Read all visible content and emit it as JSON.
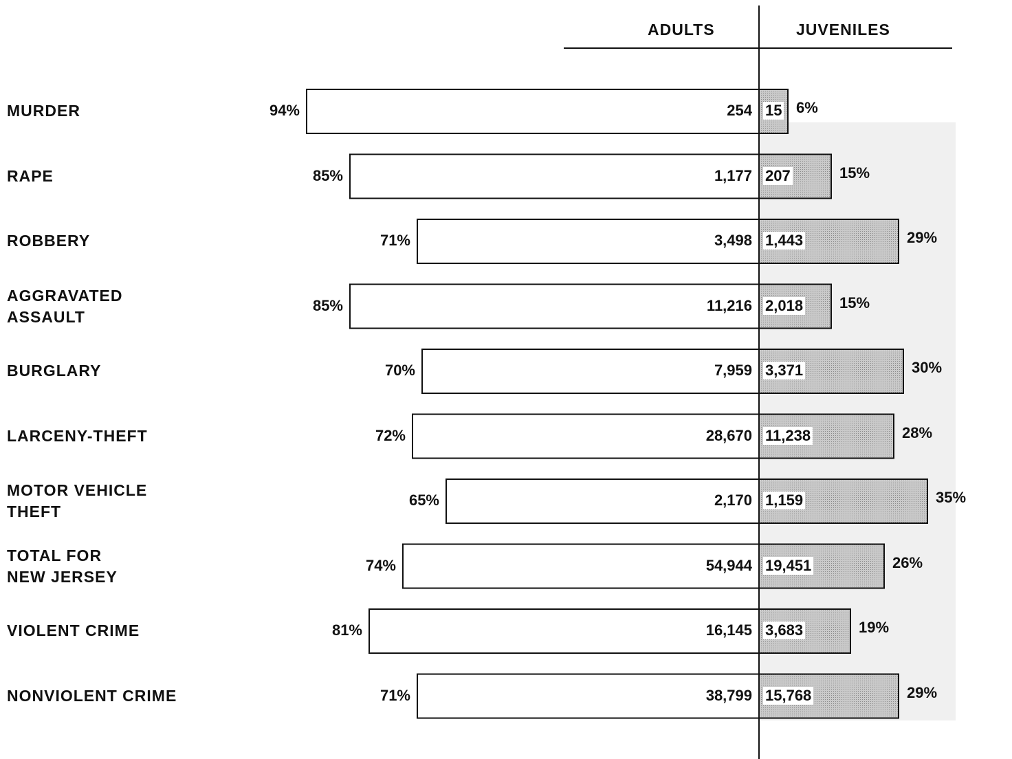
{
  "headers": {
    "adults": "ADULTS",
    "juveniles": "JUVENILES"
  },
  "colors": {
    "bar_outline": "#111111",
    "adult_fill": "#ffffff",
    "juvenile_fill": "#c9c9c9",
    "shade": "#f0f0f0"
  },
  "chart_data": {
    "type": "bar",
    "orientation": "horizontal-diverging",
    "categories": [
      "MURDER",
      "RAPE",
      "ROBBERY",
      "AGGRAVATED\nASSAULT",
      "BURGLARY",
      "LARCENY-THEFT",
      "MOTOR VEHICLE\nTHEFT",
      "TOTAL FOR\nNEW JERSEY",
      "VIOLENT CRIME",
      "NONVIOLENT CRIME"
    ],
    "series": [
      {
        "name": "ADULTS",
        "values": [
          254,
          1177,
          3498,
          11216,
          7959,
          28670,
          2170,
          54944,
          16145,
          38799
        ],
        "labels": [
          "254",
          "1,177",
          "3,498",
          "11,216",
          "7,959",
          "28,670",
          "2,170",
          "54,944",
          "16,145",
          "38,799"
        ],
        "percent": [
          94,
          85,
          71,
          85,
          70,
          72,
          65,
          74,
          81,
          71
        ],
        "percent_labels": [
          "94%",
          "85%",
          "71%",
          "85%",
          "70%",
          "72%",
          "65%",
          "74%",
          "81%",
          "71%"
        ]
      },
      {
        "name": "JUVENILES",
        "values": [
          15,
          207,
          1443,
          2018,
          3371,
          11238,
          1159,
          19451,
          3683,
          15768
        ],
        "labels": [
          "15",
          "207",
          "1,443",
          "2,018",
          "3,371",
          "11,238",
          "1,159",
          "19,451",
          "3,683",
          "15,768"
        ],
        "percent": [
          6,
          15,
          29,
          15,
          30,
          28,
          35,
          26,
          19,
          29
        ],
        "percent_labels": [
          "6%",
          "15%",
          "29%",
          "15%",
          "30%",
          "28%",
          "35%",
          "26%",
          "19%",
          "29%"
        ]
      }
    ]
  }
}
